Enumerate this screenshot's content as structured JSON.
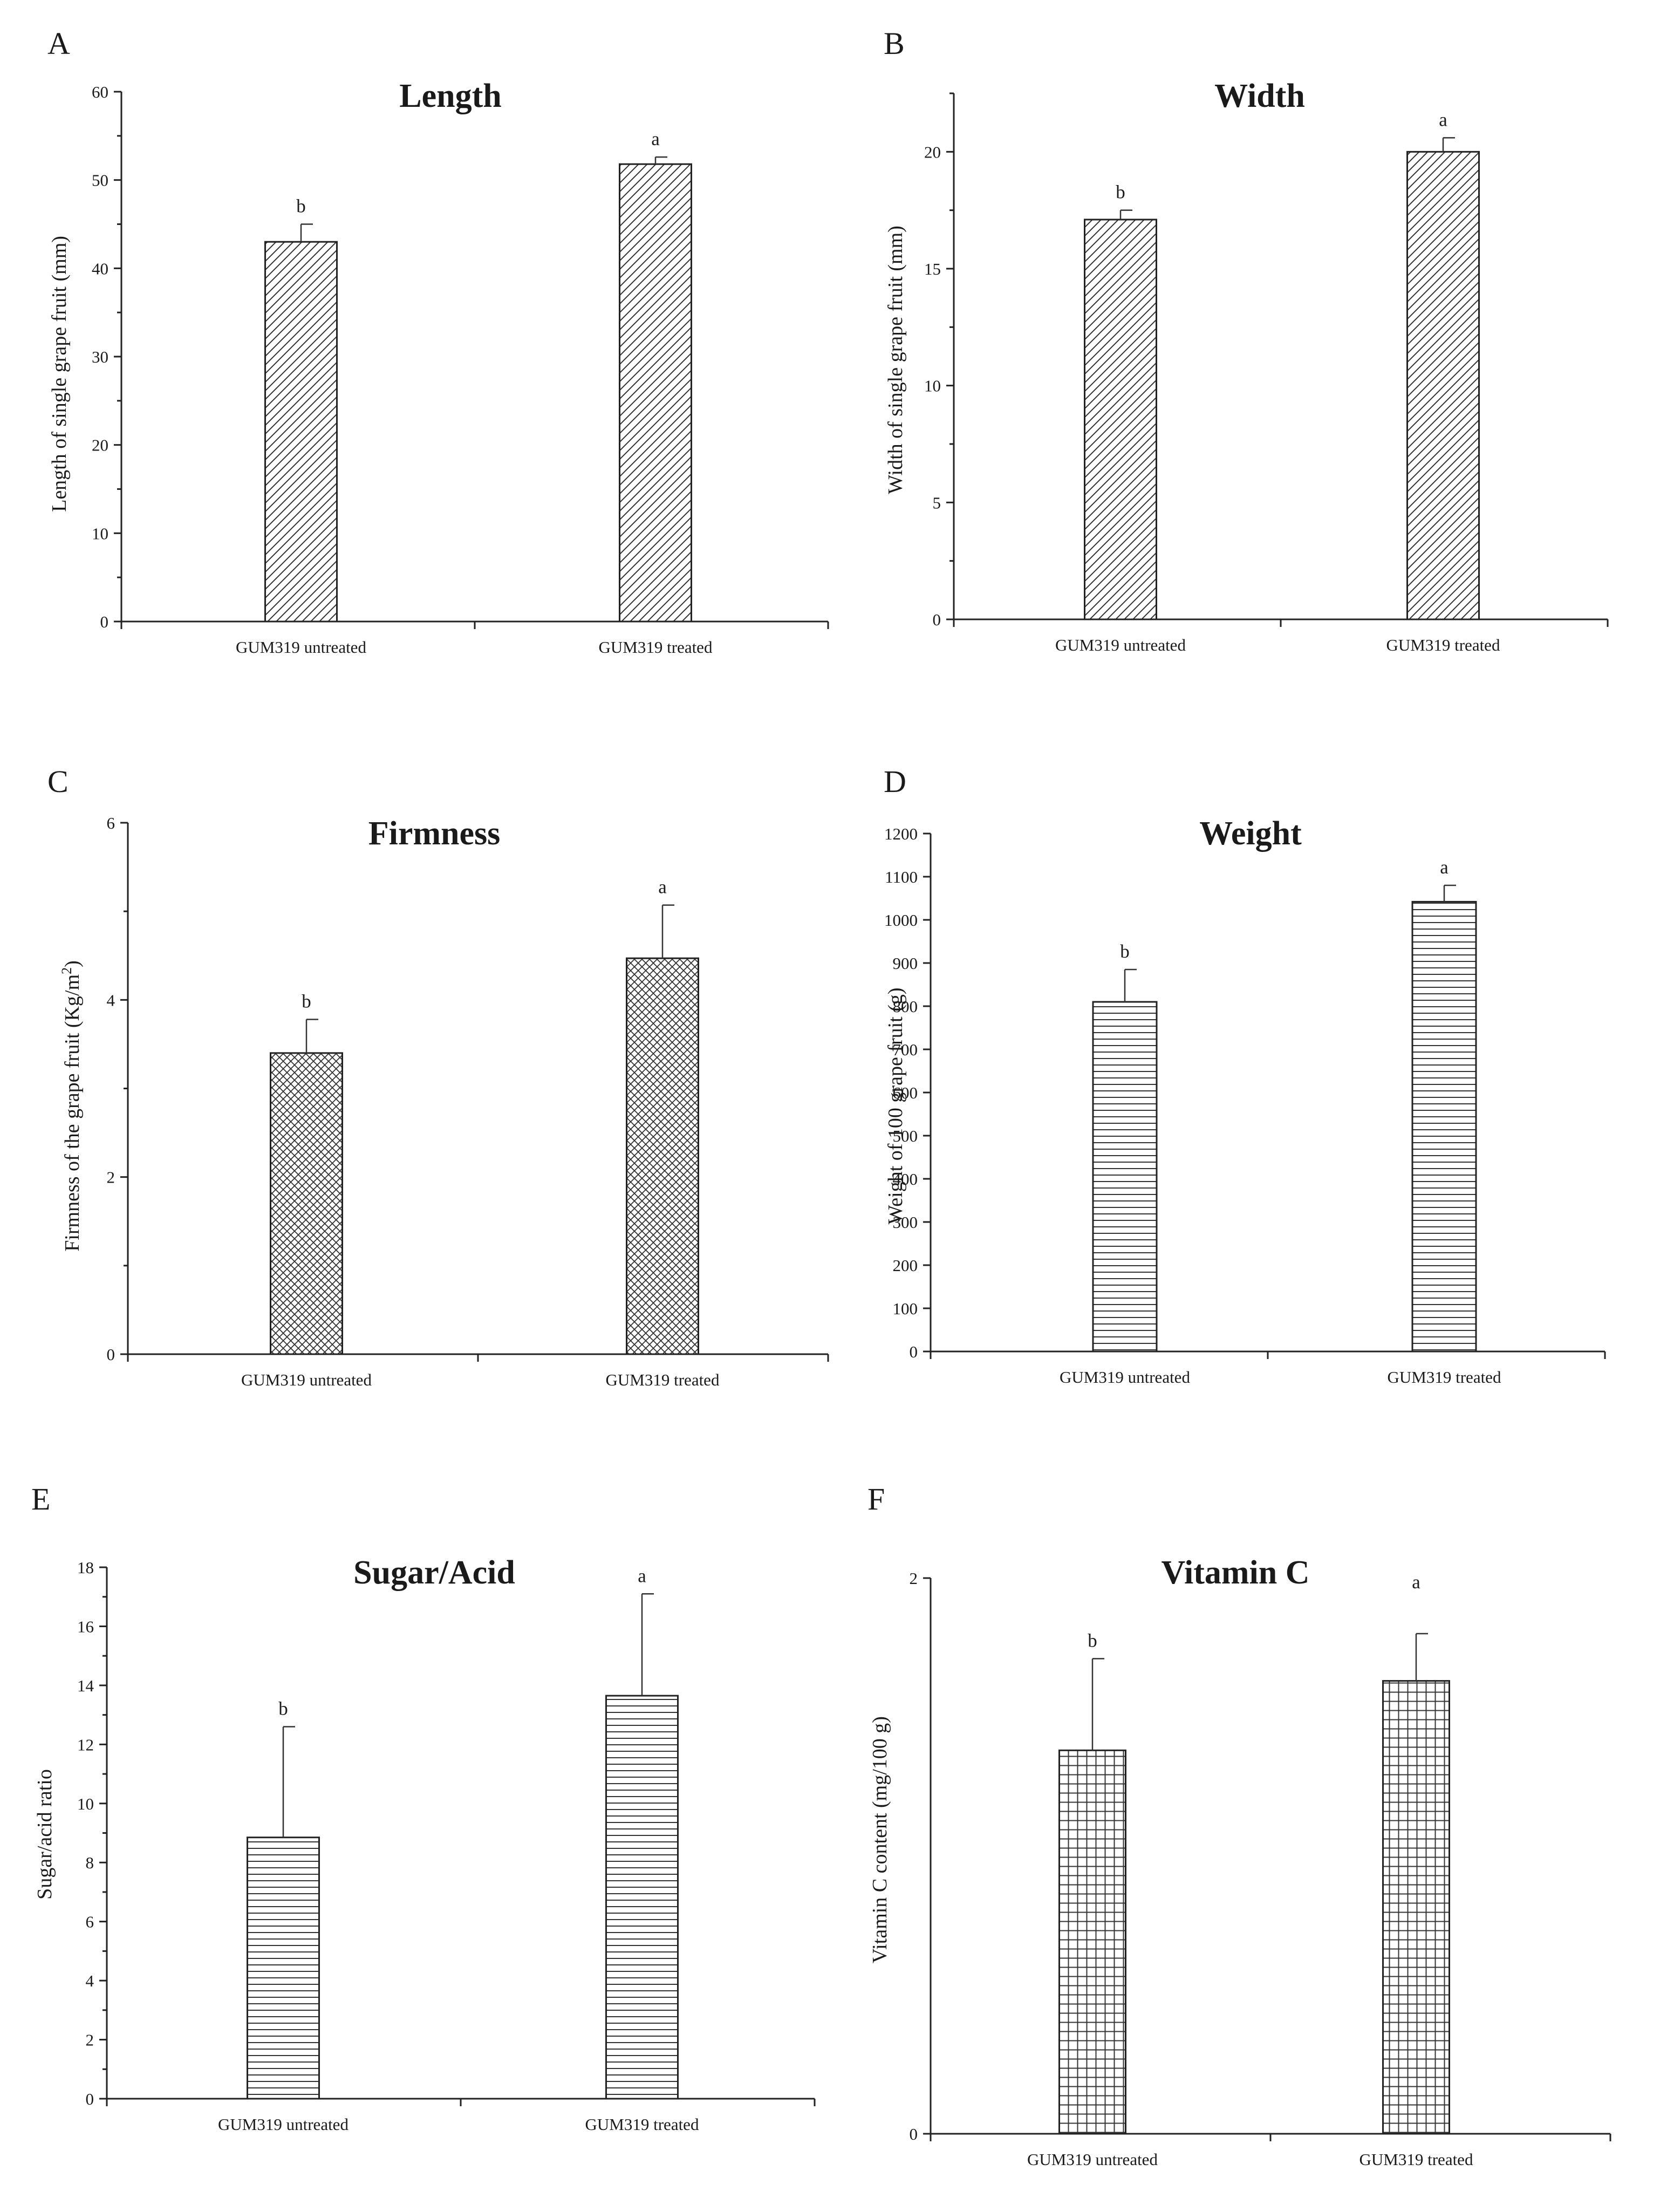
{
  "chart_data": [
    {
      "panel": "A",
      "type": "bar",
      "title": "Length",
      "ylabel": "Length of single grape fruit (mm)",
      "xlabel": "",
      "ylim": [
        0,
        60
      ],
      "yticks": [
        0,
        10,
        20,
        30,
        40,
        50,
        60
      ],
      "minor_ticks": true,
      "categories": [
        "GUM319 untreated",
        "GUM319 treated"
      ],
      "values": [
        43,
        51.8
      ],
      "errors": [
        2.0,
        0.8
      ],
      "significance": [
        "b",
        "a"
      ],
      "pattern": "diagonal",
      "grid": false
    },
    {
      "panel": "B",
      "type": "bar",
      "title": "Width",
      "ylabel": "Width of single grape fruit (mm)",
      "xlabel": "",
      "ylim": [
        0,
        22.5
      ],
      "yticks": [
        0,
        5,
        10,
        15,
        20
      ],
      "minor_ticks": true,
      "categories": [
        "GUM319 untreated",
        "GUM319 treated"
      ],
      "values": [
        17.1,
        20.0
      ],
      "errors": [
        0.4,
        0.6
      ],
      "significance": [
        "b",
        "a"
      ],
      "pattern": "diagonal",
      "grid": false
    },
    {
      "panel": "C",
      "type": "bar",
      "title": "Firmness",
      "ylabel": "Firmness of the grape fruit (Kg/m",
      "ylabel_sup": "2",
      "ylabel_suffix": ")",
      "xlabel": "",
      "ylim": [
        0,
        6
      ],
      "yticks": [
        0,
        2,
        4,
        6
      ],
      "minor_ticks": true,
      "categories": [
        "GUM319 untreated",
        "GUM319 treated"
      ],
      "values": [
        3.4,
        4.47
      ],
      "errors": [
        0.38,
        0.6
      ],
      "significance": [
        "b",
        "a"
      ],
      "pattern": "crosshatch",
      "grid": false
    },
    {
      "panel": "D",
      "type": "bar",
      "title": "Weight",
      "ylabel": "Weight of 100 grape fruit (g)",
      "xlabel": "",
      "ylim": [
        0,
        1200
      ],
      "yticks": [
        0,
        100,
        200,
        300,
        400,
        500,
        600,
        700,
        800,
        900,
        1000,
        1100,
        1200
      ],
      "minor_ticks": false,
      "categories": [
        "GUM319 untreated",
        "GUM319 treated"
      ],
      "values": [
        810,
        1042
      ],
      "errors": [
        75,
        38
      ],
      "significance": [
        "b",
        "a"
      ],
      "pattern": "horizontal",
      "grid": false
    },
    {
      "panel": "E",
      "type": "bar",
      "title": "Sugar/Acid",
      "ylabel": "Sugar/acid ratio",
      "xlabel": "",
      "ylim": [
        0,
        18
      ],
      "yticks": [
        0,
        2,
        4,
        6,
        8,
        10,
        12,
        14,
        16,
        18
      ],
      "minor_ticks": true,
      "categories": [
        "GUM319 untreated",
        "GUM319 treated"
      ],
      "values": [
        8.85,
        13.65
      ],
      "errors": [
        3.75,
        3.45
      ],
      "significance": [
        "b",
        "a"
      ],
      "pattern": "horizontal",
      "grid": false
    },
    {
      "panel": "F",
      "type": "bar",
      "title": "Vitamin C",
      "ylabel": "Vitamin C content (mg/100 g)",
      "xlabel": "",
      "ylim": [
        0,
        2
      ],
      "yticks": [
        0,
        2
      ],
      "minor_ticks": false,
      "categories": [
        "GUM319 untreated",
        "GUM319 treated"
      ],
      "values": [
        1.38,
        1.63
      ],
      "errors": [
        0.33,
        0.17
      ],
      "significance": [
        "b",
        "a"
      ],
      "pattern": "grid",
      "grid": false
    }
  ]
}
